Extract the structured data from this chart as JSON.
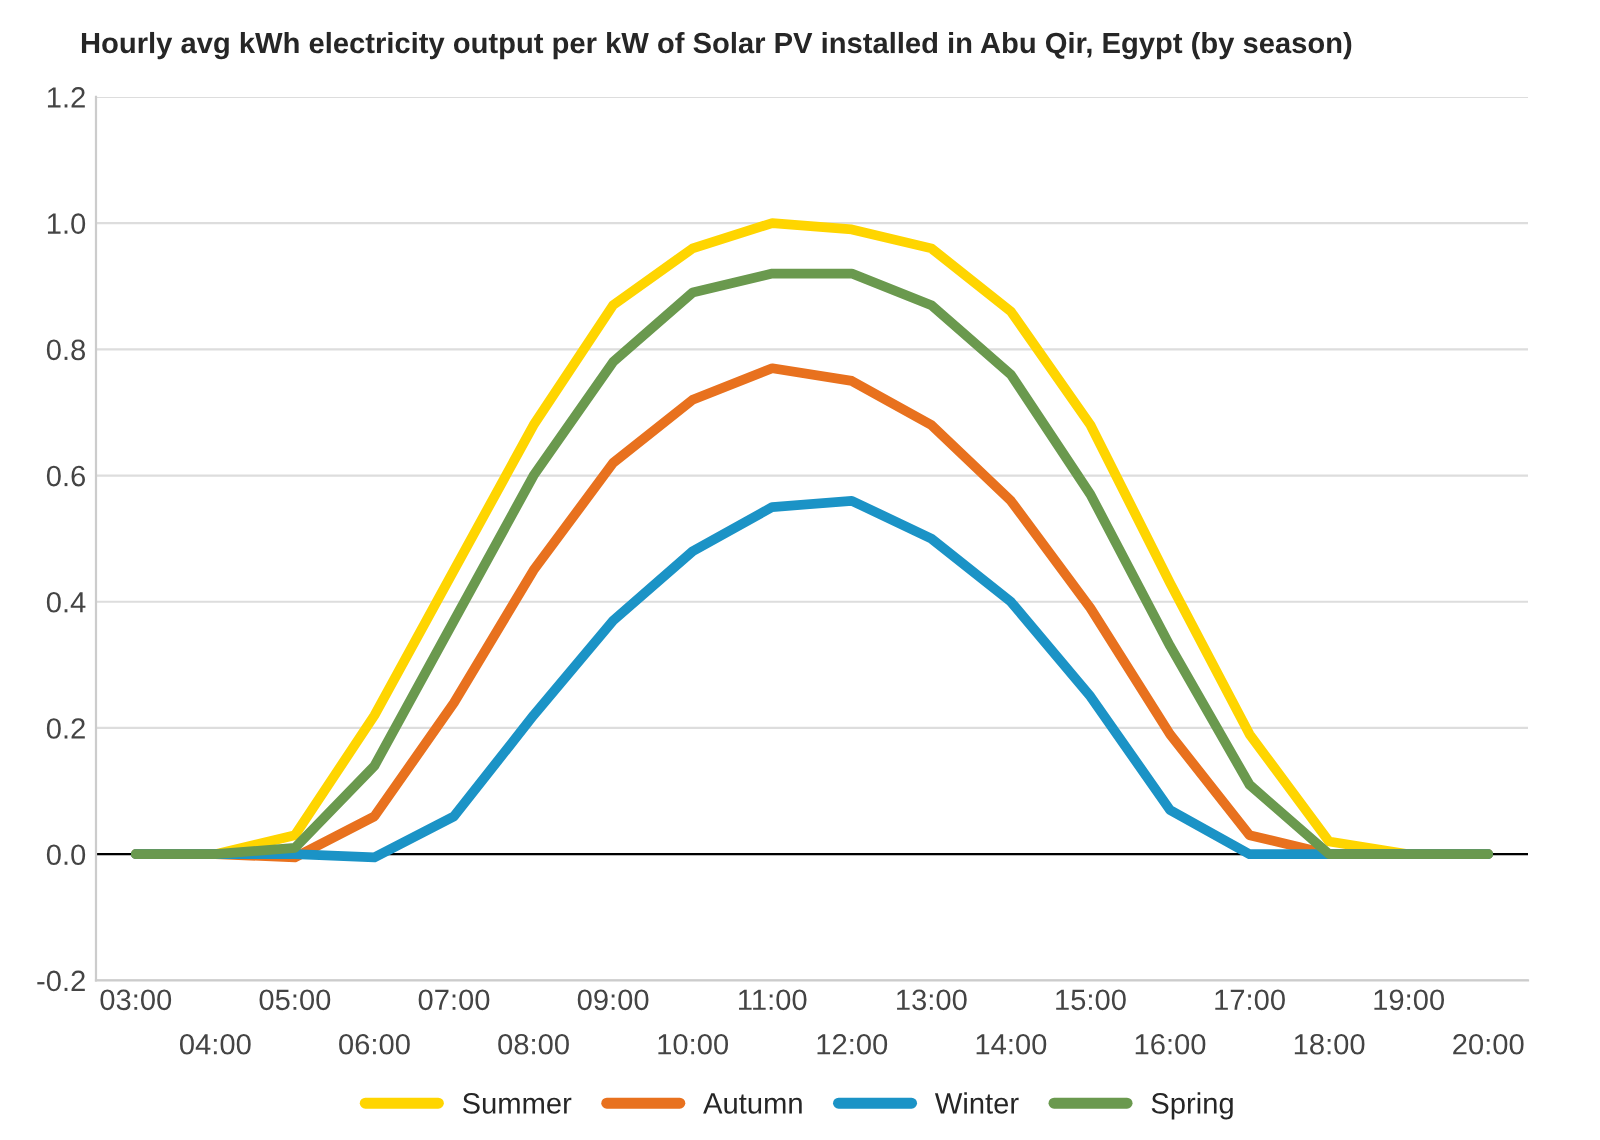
{
  "chart_data": {
    "type": "line",
    "title": "Hourly avg kWh electricity output per kW of Solar PV installed in Abu Qir, Egypt (by season)",
    "categories": [
      "03:00",
      "04:00",
      "05:00",
      "06:00",
      "07:00",
      "08:00",
      "09:00",
      "10:00",
      "11:00",
      "12:00",
      "13:00",
      "14:00",
      "15:00",
      "16:00",
      "17:00",
      "18:00",
      "19:00",
      "20:00"
    ],
    "series": [
      {
        "name": "Summer",
        "color": "#ffd500",
        "values": [
          0,
          0,
          0.03,
          0.22,
          0.45,
          0.68,
          0.87,
          0.96,
          1.0,
          0.99,
          0.96,
          0.86,
          0.68,
          0.43,
          0.19,
          0.02,
          0,
          0
        ]
      },
      {
        "name": "Autumn",
        "color": "#e8711e",
        "values": [
          0,
          0,
          -0.005,
          0.06,
          0.24,
          0.45,
          0.62,
          0.72,
          0.77,
          0.75,
          0.68,
          0.56,
          0.39,
          0.19,
          0.03,
          0,
          0,
          0
        ]
      },
      {
        "name": "Winter",
        "color": "#1b93c6",
        "values": [
          0,
          0,
          0,
          -0.005,
          0.06,
          0.22,
          0.37,
          0.48,
          0.55,
          0.56,
          0.5,
          0.4,
          0.25,
          0.07,
          0,
          0,
          0,
          0
        ]
      },
      {
        "name": "Spring",
        "color": "#6a994e",
        "values": [
          0,
          0,
          0.01,
          0.14,
          0.37,
          0.6,
          0.78,
          0.89,
          0.92,
          0.92,
          0.87,
          0.76,
          0.57,
          0.33,
          0.11,
          0,
          0,
          0
        ]
      }
    ],
    "ylim": [
      -0.2,
      1.2
    ],
    "yticks": [
      {
        "value": -0.2,
        "label": "-0.2"
      },
      {
        "value": 0,
        "label": "0.0"
      },
      {
        "value": 0.2,
        "label": "0.2"
      },
      {
        "value": 0.4,
        "label": "0.4"
      },
      {
        "value": 0.6,
        "label": "0.6"
      },
      {
        "value": 0.8,
        "label": "0.8"
      },
      {
        "value": 1.0,
        "label": "1.0"
      },
      {
        "value": 1.2,
        "label": "1.2"
      }
    ],
    "ref_lines": [
      {
        "axis": "y",
        "value": 0,
        "color": "#000000"
      }
    ],
    "grid": "y",
    "legend": "bottom",
    "marker": "none",
    "line_style": "solid"
  }
}
